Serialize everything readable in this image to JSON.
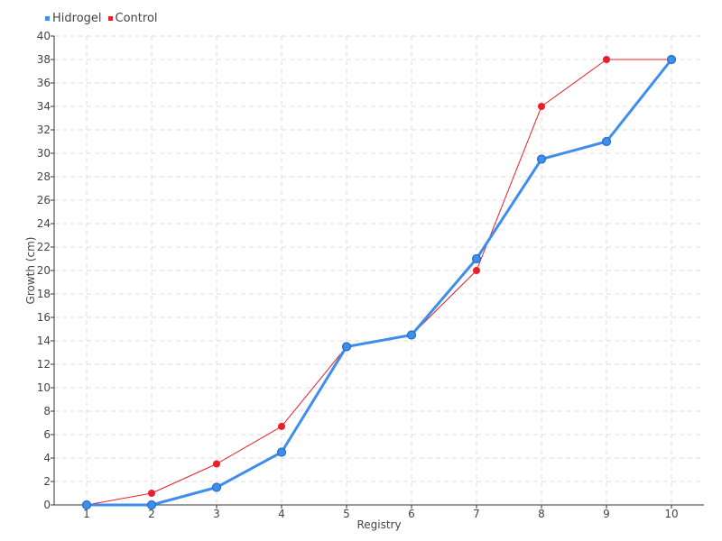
{
  "legend": {
    "items": [
      {
        "label": "Hidrogel",
        "color": "#3d8eed"
      },
      {
        "label": "Control",
        "color": "#e8202a"
      }
    ]
  },
  "chart_data": {
    "type": "line",
    "x": [
      1,
      2,
      3,
      4,
      5,
      6,
      7,
      8,
      9,
      10
    ],
    "series": [
      {
        "name": "Hidrogel",
        "color": "#3d8eed",
        "values": [
          0,
          0,
          1.5,
          4.5,
          13.5,
          14.5,
          21,
          29.5,
          31,
          38
        ]
      },
      {
        "name": "Control",
        "color": "#e8202a",
        "values": [
          0,
          1,
          3.5,
          6.7,
          13.5,
          14.5,
          20,
          34,
          38,
          38
        ]
      }
    ],
    "xlabel": "Registry",
    "ylabel": "Growth (cm)",
    "xlim": [
      0.5,
      10.5
    ],
    "ylim": [
      0,
      40
    ],
    "yticks": [
      "0",
      "2",
      "4",
      "6",
      "8",
      "10",
      "12",
      "14",
      "16",
      "18",
      "20",
      "22",
      "24",
      "26",
      "28",
      "30",
      "32",
      "34",
      "36",
      "38",
      "40"
    ],
    "xticks": [
      "1",
      "2",
      "3",
      "4",
      "5",
      "6",
      "7",
      "8",
      "9",
      "10"
    ],
    "grid": true,
    "legend_position": "top-left"
  }
}
